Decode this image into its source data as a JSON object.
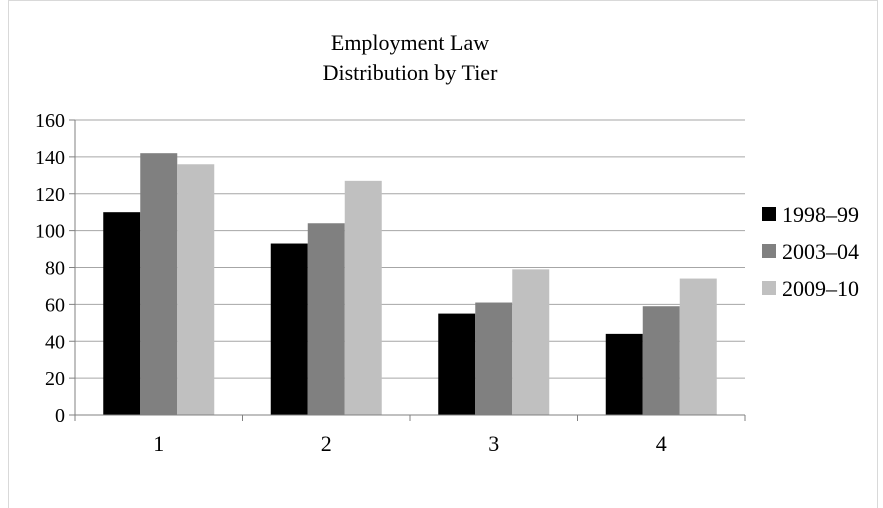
{
  "chart_data": {
    "type": "bar",
    "title_line1": "Employment Law",
    "title_line2": "Distribution by Tier",
    "categories": [
      "1",
      "2",
      "3",
      "4"
    ],
    "series": [
      {
        "name": "1998–99",
        "values": [
          110,
          93,
          55,
          44
        ],
        "color": "#000000"
      },
      {
        "name": "2003–04",
        "values": [
          142,
          104,
          61,
          59
        ],
        "color": "#808080"
      },
      {
        "name": "2009–10",
        "values": [
          136,
          127,
          79,
          74
        ],
        "color": "#c0c0c0"
      }
    ],
    "ylim": [
      0,
      160
    ],
    "yticks": [
      "0",
      "20",
      "40",
      "60",
      "80",
      "100",
      "120",
      "140",
      "160"
    ],
    "grid": true,
    "legend": "right"
  }
}
